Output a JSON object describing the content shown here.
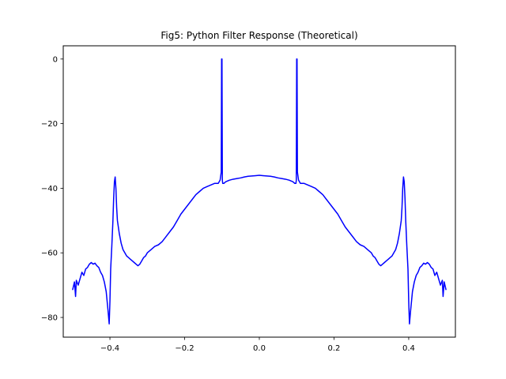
{
  "chart_data": {
    "type": "line",
    "title": "Fig5: Python Filter Response (Theoretical)",
    "xlabel": "",
    "ylabel": "",
    "xlim": [
      -0.525,
      0.525
    ],
    "ylim": [
      -86.1,
      4.1
    ],
    "x_ticks": [
      -0.4,
      -0.2,
      0.0,
      0.2,
      0.4
    ],
    "x_tick_labels": [
      "−0.4",
      "−0.2",
      "0.0",
      "0.2",
      "0.4"
    ],
    "y_ticks": [
      0,
      -20,
      -40,
      -60,
      -80
    ],
    "y_tick_labels": [
      "0",
      "−20",
      "−40",
      "−60",
      "−80"
    ],
    "grid": false,
    "legend": "none",
    "series": [
      {
        "color": "#0000ff",
        "x": [
          -0.5,
          -0.495,
          -0.492,
          -0.49,
          -0.485,
          -0.48,
          -0.475,
          -0.47,
          -0.465,
          -0.46,
          -0.455,
          -0.45,
          -0.445,
          -0.44,
          -0.435,
          -0.43,
          -0.425,
          -0.42,
          -0.415,
          -0.41,
          -0.405,
          -0.402,
          -0.4,
          -0.398,
          -0.395,
          -0.392,
          -0.39,
          -0.388,
          -0.386,
          -0.384,
          -0.382,
          -0.38,
          -0.375,
          -0.37,
          -0.365,
          -0.36,
          -0.355,
          -0.35,
          -0.345,
          -0.34,
          -0.335,
          -0.33,
          -0.325,
          -0.32,
          -0.315,
          -0.31,
          -0.305,
          -0.3,
          -0.29,
          -0.28,
          -0.27,
          -0.26,
          -0.25,
          -0.24,
          -0.23,
          -0.22,
          -0.21,
          -0.2,
          -0.19,
          -0.18,
          -0.17,
          -0.16,
          -0.15,
          -0.14,
          -0.13,
          -0.12,
          -0.11,
          -0.105,
          -0.102,
          -0.101,
          -0.1,
          -0.099,
          -0.098,
          -0.095,
          -0.09,
          -0.08,
          -0.07,
          -0.06,
          -0.05,
          -0.04,
          -0.03,
          -0.02,
          -0.01,
          0.0,
          0.01,
          0.02,
          0.03,
          0.04,
          0.05,
          0.06,
          0.07,
          0.08,
          0.09,
          0.095,
          0.098,
          0.099,
          0.1,
          0.101,
          0.102,
          0.105,
          0.11,
          0.12,
          0.13,
          0.14,
          0.15,
          0.16,
          0.17,
          0.18,
          0.19,
          0.2,
          0.21,
          0.22,
          0.23,
          0.24,
          0.25,
          0.26,
          0.27,
          0.28,
          0.29,
          0.3,
          0.305,
          0.31,
          0.315,
          0.32,
          0.325,
          0.33,
          0.335,
          0.34,
          0.345,
          0.35,
          0.355,
          0.36,
          0.365,
          0.37,
          0.375,
          0.38,
          0.382,
          0.384,
          0.386,
          0.388,
          0.39,
          0.392,
          0.395,
          0.398,
          0.4,
          0.402,
          0.405,
          0.41,
          0.415,
          0.42,
          0.425,
          0.43,
          0.435,
          0.44,
          0.445,
          0.45,
          0.455,
          0.46,
          0.465,
          0.47,
          0.475,
          0.48,
          0.485,
          0.49,
          0.492,
          0.495,
          0.5
        ],
        "y": [
          -71.5,
          -69,
          -73.5,
          -68.5,
          -70,
          -68,
          -66,
          -67,
          -65,
          -64.5,
          -63.5,
          -63,
          -63.5,
          -63.2,
          -64,
          -64.5,
          -66,
          -67,
          -69,
          -72,
          -78,
          -82,
          -75,
          -65,
          -58,
          -50,
          -43,
          -38,
          -36.5,
          -40,
          -46,
          -50,
          -54,
          -57,
          -59,
          -60,
          -61,
          -61.5,
          -62,
          -62.5,
          -63,
          -63.5,
          -64,
          -63.5,
          -62.5,
          -61.5,
          -61,
          -60,
          -59,
          -58,
          -57.5,
          -56.5,
          -55,
          -53.5,
          -52,
          -50,
          -48,
          -46.5,
          -45,
          -43.5,
          -42,
          -41,
          -40,
          -39.5,
          -39,
          -38.5,
          -38.5,
          -37.5,
          -35,
          0,
          0,
          -37.5,
          -38.5,
          -38.5,
          -38,
          -37.5,
          -37.2,
          -37,
          -36.8,
          -36.5,
          -36.3,
          -36.2,
          -36.1,
          -36,
          -36.1,
          -36.2,
          -36.3,
          -36.5,
          -36.8,
          -37,
          -37.2,
          -37.5,
          -38,
          -38.5,
          -38.5,
          -37.5,
          0,
          0,
          -35,
          -37.5,
          -38.5,
          -38.5,
          -39,
          -39.5,
          -40,
          -41,
          -42,
          -43.5,
          -45,
          -46.5,
          -48,
          -50,
          -52,
          -53.5,
          -55,
          -56.5,
          -57.5,
          -58,
          -59,
          -60,
          -61,
          -61.5,
          -62.5,
          -63.5,
          -64,
          -63.5,
          -63,
          -62.5,
          -62,
          -61.5,
          -61,
          -60,
          -59,
          -57,
          -54,
          -50,
          -46,
          -40,
          -36.5,
          -38,
          -43,
          -50,
          -58,
          -65,
          -75,
          -82,
          -78,
          -72,
          -69,
          -67,
          -66,
          -64.5,
          -64,
          -63.2,
          -63.5,
          -63,
          -63.5,
          -64.5,
          -65,
          -67,
          -66,
          -68,
          -70,
          -68.5,
          -73.5,
          -69,
          -71.5
        ]
      }
    ]
  }
}
